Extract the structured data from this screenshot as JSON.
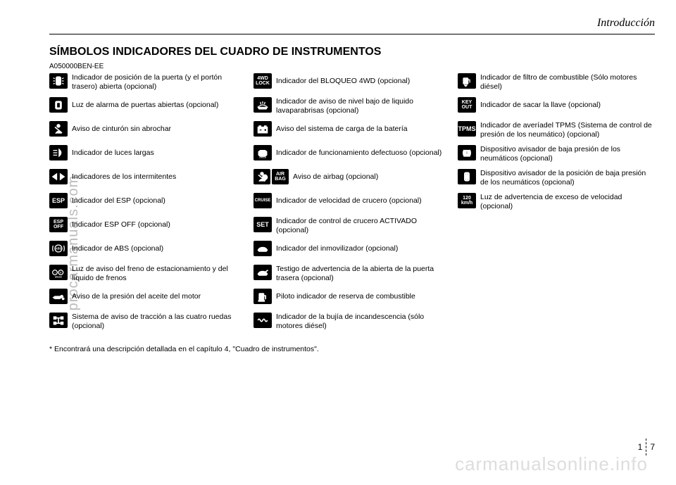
{
  "watermark_left": "procarmanuals.com",
  "watermark_bottom": "carmanualsonline.info",
  "section_title": "Introducción",
  "main_title": "SÍMBOLOS INDICADORES DEL CUADRO DE INSTRUMENTOS",
  "code": "A050000BEN-EE",
  "footnote": "* Encontrará una descripción detallada en el capítulo 4, \"Cuadro de instrumentos\".",
  "page_left": "1",
  "page_right": "7",
  "col1": [
    {
      "icon": "door-pos",
      "label": "",
      "text": "Indicador de posición de la puerta (y el portón trasero) abierta (opcional)"
    },
    {
      "icon": "door-alarm",
      "label": "",
      "text": "Luz de alarma de puertas abiertas (opcional)"
    },
    {
      "icon": "seatbelt",
      "label": "",
      "text": "Aviso de cinturón sin abrochar"
    },
    {
      "icon": "highbeam",
      "label": "",
      "text": "Indicador de luces largas"
    },
    {
      "icon": "turn",
      "label": "",
      "text": "Indicadores de los intermitentes"
    },
    {
      "icon": "text",
      "label": "ESP",
      "text": "Indicador del ESP (opcional)"
    },
    {
      "icon": "text2",
      "label": "ESP\nOFF",
      "text": "Indicador ESP OFF (opcional)"
    },
    {
      "icon": "abs",
      "label": "ABS",
      "text": "Indicador de ABS (opcional)"
    },
    {
      "icon": "brake",
      "label": "",
      "text": "Luz de aviso del freno de estacionamiento y del líquido de frenos"
    },
    {
      "icon": "oil",
      "label": "",
      "text": "Aviso de la presión del aceite del motor"
    },
    {
      "icon": "4wd-sys",
      "label": "",
      "text": "Sistema de aviso de tracción a las cuatro ruedas (opcional)"
    }
  ],
  "col2": [
    {
      "icon": "text2",
      "label": "4WD\nLOCK",
      "text": "Indicador del BLOQUEO 4WD (opcional)"
    },
    {
      "icon": "washer",
      "label": "",
      "text": "Indicador de aviso de nivel bajo de liquido lavaparabrisas (opcional)"
    },
    {
      "icon": "battery",
      "label": "",
      "text": "Aviso del sistema de carga de la batería"
    },
    {
      "icon": "engine",
      "label": "CHECK",
      "text": "Indicador de funcionamiento defectuoso (opcional)"
    },
    {
      "icon": "airbag",
      "label": "AIR\nBAG",
      "text": "Aviso de airbag (opcional)"
    },
    {
      "icon": "text",
      "label": "CRUISE",
      "text": "Indicador de velocidad de crucero (opcional)"
    },
    {
      "icon": "text",
      "label": "SET",
      "text": "Indicador de control de crucero ACTIVADO (opcional)"
    },
    {
      "icon": "immob",
      "label": "",
      "text": "Indicador del inmovilizador (opcional)"
    },
    {
      "icon": "tailgate",
      "label": "",
      "text": "Testigo de advertencia de la abierta de la puerta trasera (opcional)"
    },
    {
      "icon": "fuel",
      "label": "",
      "text": "Piloto indicador de reserva de combustible"
    },
    {
      "icon": "glow",
      "label": "",
      "text": "Indicador de la bujía de incandescencia (sólo motores diésel)"
    }
  ],
  "col3": [
    {
      "icon": "fuelfilter",
      "label": "",
      "text": "Indicador de filtro de combustible (Sólo motores diésel)"
    },
    {
      "icon": "text2",
      "label": "KEY\nOUT",
      "text": "Indicador de sacar la llave (opcional)"
    },
    {
      "icon": "text",
      "label": "TPMS",
      "text": "Indicador de averíadel TPMS (Sistema de control de presión de los neumático)  (opcional)"
    },
    {
      "icon": "tire",
      "label": "",
      "text": "Dispositivo avisador de baja presión de los neumáticos (opcional)"
    },
    {
      "icon": "tirepos",
      "label": "",
      "text": "Dispositivo avisador de la posición de baja presión de los neumáticos (opcional)"
    },
    {
      "icon": "text2",
      "label": "120\nkm/h",
      "text": "Luz de advertencia de exceso de velocidad (opcional)"
    }
  ],
  "colors": {
    "icon_bg": "#000000",
    "icon_fg": "#ffffff",
    "text": "#000000",
    "watermark": "#bbbbbb"
  }
}
